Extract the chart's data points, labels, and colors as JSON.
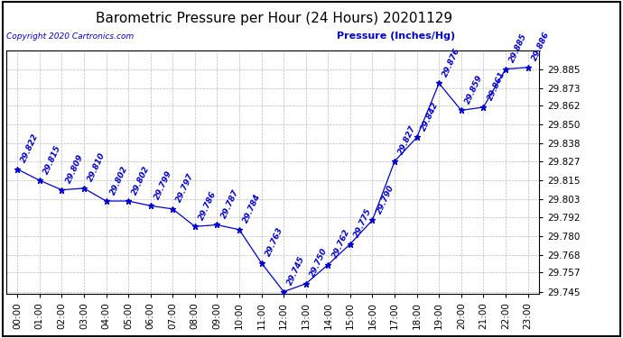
{
  "title": "Barometric Pressure per Hour (24 Hours) 20201129",
  "copyright": "Copyright 2020 Cartronics.com",
  "legend_label": "Pressure (Inches/Hg)",
  "hours": [
    "00:00",
    "01:00",
    "02:00",
    "03:00",
    "04:00",
    "05:00",
    "06:00",
    "07:00",
    "08:00",
    "09:00",
    "10:00",
    "11:00",
    "12:00",
    "13:00",
    "14:00",
    "15:00",
    "16:00",
    "17:00",
    "18:00",
    "19:00",
    "20:00",
    "21:00",
    "22:00",
    "23:00"
  ],
  "values": [
    29.822,
    29.815,
    29.809,
    29.81,
    29.802,
    29.802,
    29.799,
    29.797,
    29.786,
    29.787,
    29.784,
    29.763,
    29.745,
    29.75,
    29.762,
    29.775,
    29.79,
    29.827,
    29.842,
    29.876,
    29.859,
    29.861,
    29.885,
    29.886
  ],
  "line_color": "#0000cc",
  "marker_color": "#0000cc",
  "label_color": "#0000cc",
  "copyright_color": "#0000cc",
  "bg_color": "#ffffff",
  "grid_color": "#bbbbbb",
  "title_color": "#000000",
  "ytick_values": [
    29.745,
    29.757,
    29.768,
    29.78,
    29.792,
    29.803,
    29.815,
    29.827,
    29.838,
    29.85,
    29.862,
    29.873,
    29.885
  ],
  "ylim_min": 29.7435,
  "ylim_max": 29.8965,
  "title_fontsize": 11,
  "label_fontsize": 6.5,
  "tick_fontsize": 7.5,
  "copyright_fontsize": 6.5,
  "legend_fontsize": 8
}
